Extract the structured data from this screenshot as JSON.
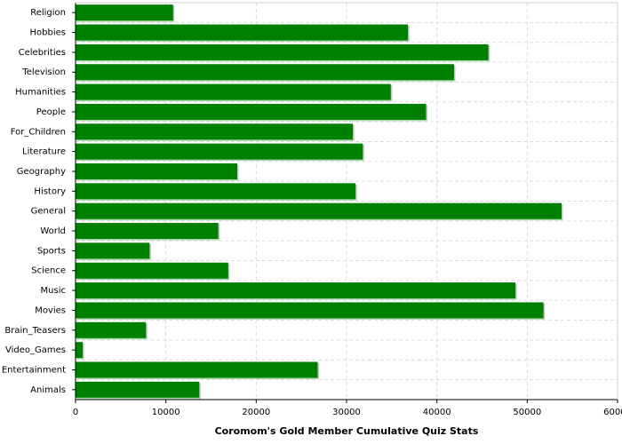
{
  "chart_data": {
    "type": "hbar",
    "title": "Coromom's Gold Member Cumulative Quiz Stats",
    "categories": [
      "Religion",
      "Hobbies",
      "Celebrities",
      "Television",
      "Humanities",
      "People",
      "For_Children",
      "Literature",
      "Geography",
      "History",
      "General",
      "World",
      "Sports",
      "Science",
      "Music",
      "Movies",
      "Brain_Teasers",
      "Video_Games",
      "Entertainment",
      "Animals"
    ],
    "values": [
      10800,
      36800,
      45700,
      41900,
      34900,
      38800,
      30700,
      31800,
      17900,
      31000,
      53800,
      15800,
      8200,
      16900,
      48700,
      51800,
      7800,
      800,
      26800,
      13700
    ],
    "color": "#008000",
    "xlim": [
      0,
      60000
    ],
    "xticks": [
      0,
      10000,
      20000,
      30000,
      40000,
      50000,
      60000
    ],
    "grid": true
  }
}
